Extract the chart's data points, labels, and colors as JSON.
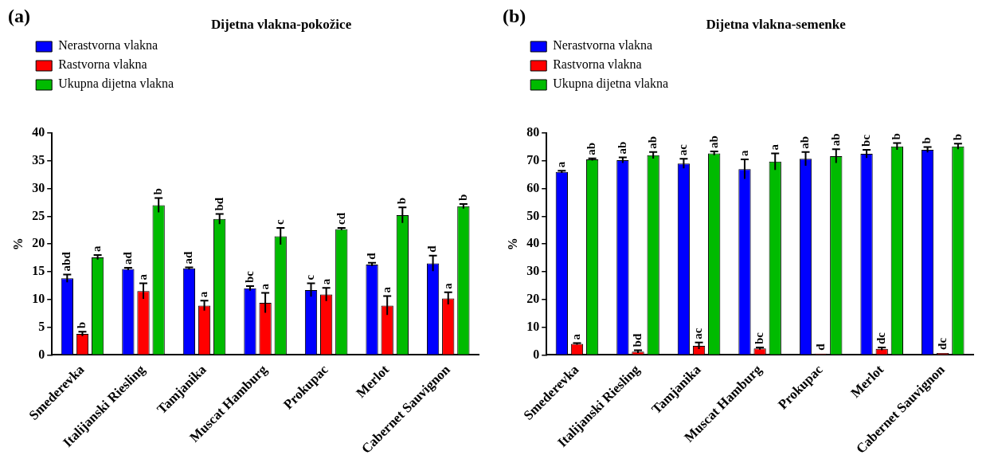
{
  "chart_data": [
    {
      "type": "bar",
      "title": "Dijetna vlakna-pokožice",
      "ylabel": "%",
      "annotations": [
        "(a)"
      ],
      "categories": [
        "Smederevka",
        "Italijanski Riesling",
        "Tamjanika",
        "Muscat Hamburg",
        "Prokupac",
        "Merlot",
        "Cabernet Sauvignon"
      ],
      "series": [
        {
          "name": "Nerastvorna vlakna",
          "color": "#0000ff",
          "values": [
            13.8,
            15.5,
            15.6,
            12.0,
            11.7,
            16.3,
            16.5
          ],
          "errors": [
            0.7,
            0.2,
            0.2,
            0.4,
            1.2,
            0.3,
            1.4
          ],
          "value_labels": [
            "abd",
            "ad",
            "ad",
            "bc",
            "c",
            "d",
            "d"
          ]
        },
        {
          "name": "Rastvorna vlakna",
          "color": "#ff0000",
          "values": [
            3.8,
            11.5,
            8.9,
            9.4,
            10.9,
            8.9,
            10.2
          ],
          "errors": [
            0.4,
            1.4,
            0.9,
            1.8,
            1.2,
            1.7,
            1.1
          ],
          "value_labels": [
            "b",
            "a",
            "a",
            "a",
            "a",
            "a",
            "a"
          ]
        },
        {
          "name": "Ukupna dijetna vlakna",
          "color": "#00bb00",
          "values": [
            17.6,
            27.0,
            24.5,
            21.4,
            22.7,
            25.2,
            26.8
          ],
          "errors": [
            0.4,
            1.3,
            0.9,
            1.5,
            0.2,
            1.4,
            0.4
          ],
          "value_labels": [
            "a",
            "b",
            "bd",
            "c",
            "cd",
            "b",
            "b"
          ]
        }
      ],
      "ylim": [
        0,
        40
      ],
      "yticks": [
        0,
        5,
        10,
        15,
        20,
        25,
        30,
        35,
        40
      ],
      "grid": false,
      "legend": "top left"
    },
    {
      "type": "bar",
      "title": "Dijetna vlakna-semenke",
      "ylabel": "%",
      "annotations": [
        "(b)"
      ],
      "categories": [
        "Smederevka",
        "Italijanski Riesling",
        "Tamjanika",
        "Muscat Hamburg",
        "Prokupac",
        "Merlot",
        "Cabernet Sauvignon"
      ],
      "series": [
        {
          "name": "Nerastvorna vlakna",
          "color": "#0000ff",
          "values": [
            66.0,
            70.2,
            69.0,
            67.0,
            70.7,
            72.5,
            74.0
          ],
          "errors": [
            0.4,
            1.0,
            1.7,
            3.5,
            2.5,
            1.5,
            1.0
          ],
          "value_labels": [
            "a",
            "ab",
            "ac",
            "a",
            "ab",
            "bc",
            "b"
          ]
        },
        {
          "name": "Rastvorna vlakna",
          "color": "#ff0000",
          "values": [
            4.0,
            1.2,
            3.3,
            2.3,
            0.5,
            2.2,
            0.7
          ],
          "errors": [
            0.3,
            0.5,
            1.2,
            0.4,
            null,
            0.5,
            null
          ],
          "value_labels": [
            "a",
            "bd",
            "ac",
            "bc",
            "d",
            "dc",
            "dc"
          ]
        },
        {
          "name": "Ukupna dijetna vlakna",
          "color": "#00bb00",
          "values": [
            70.5,
            72.0,
            72.7,
            69.7,
            71.7,
            75.2,
            75.2
          ],
          "errors": [
            0.4,
            1.2,
            0.7,
            3.0,
            2.5,
            1.2,
            1.0
          ],
          "value_labels": [
            "ab",
            "ab",
            "ab",
            "a",
            "ab",
            "b",
            "b"
          ]
        }
      ],
      "ylim": [
        0,
        80
      ],
      "yticks": [
        0,
        10,
        20,
        30,
        40,
        50,
        60,
        70,
        80
      ],
      "grid": false,
      "legend": "top left"
    }
  ]
}
